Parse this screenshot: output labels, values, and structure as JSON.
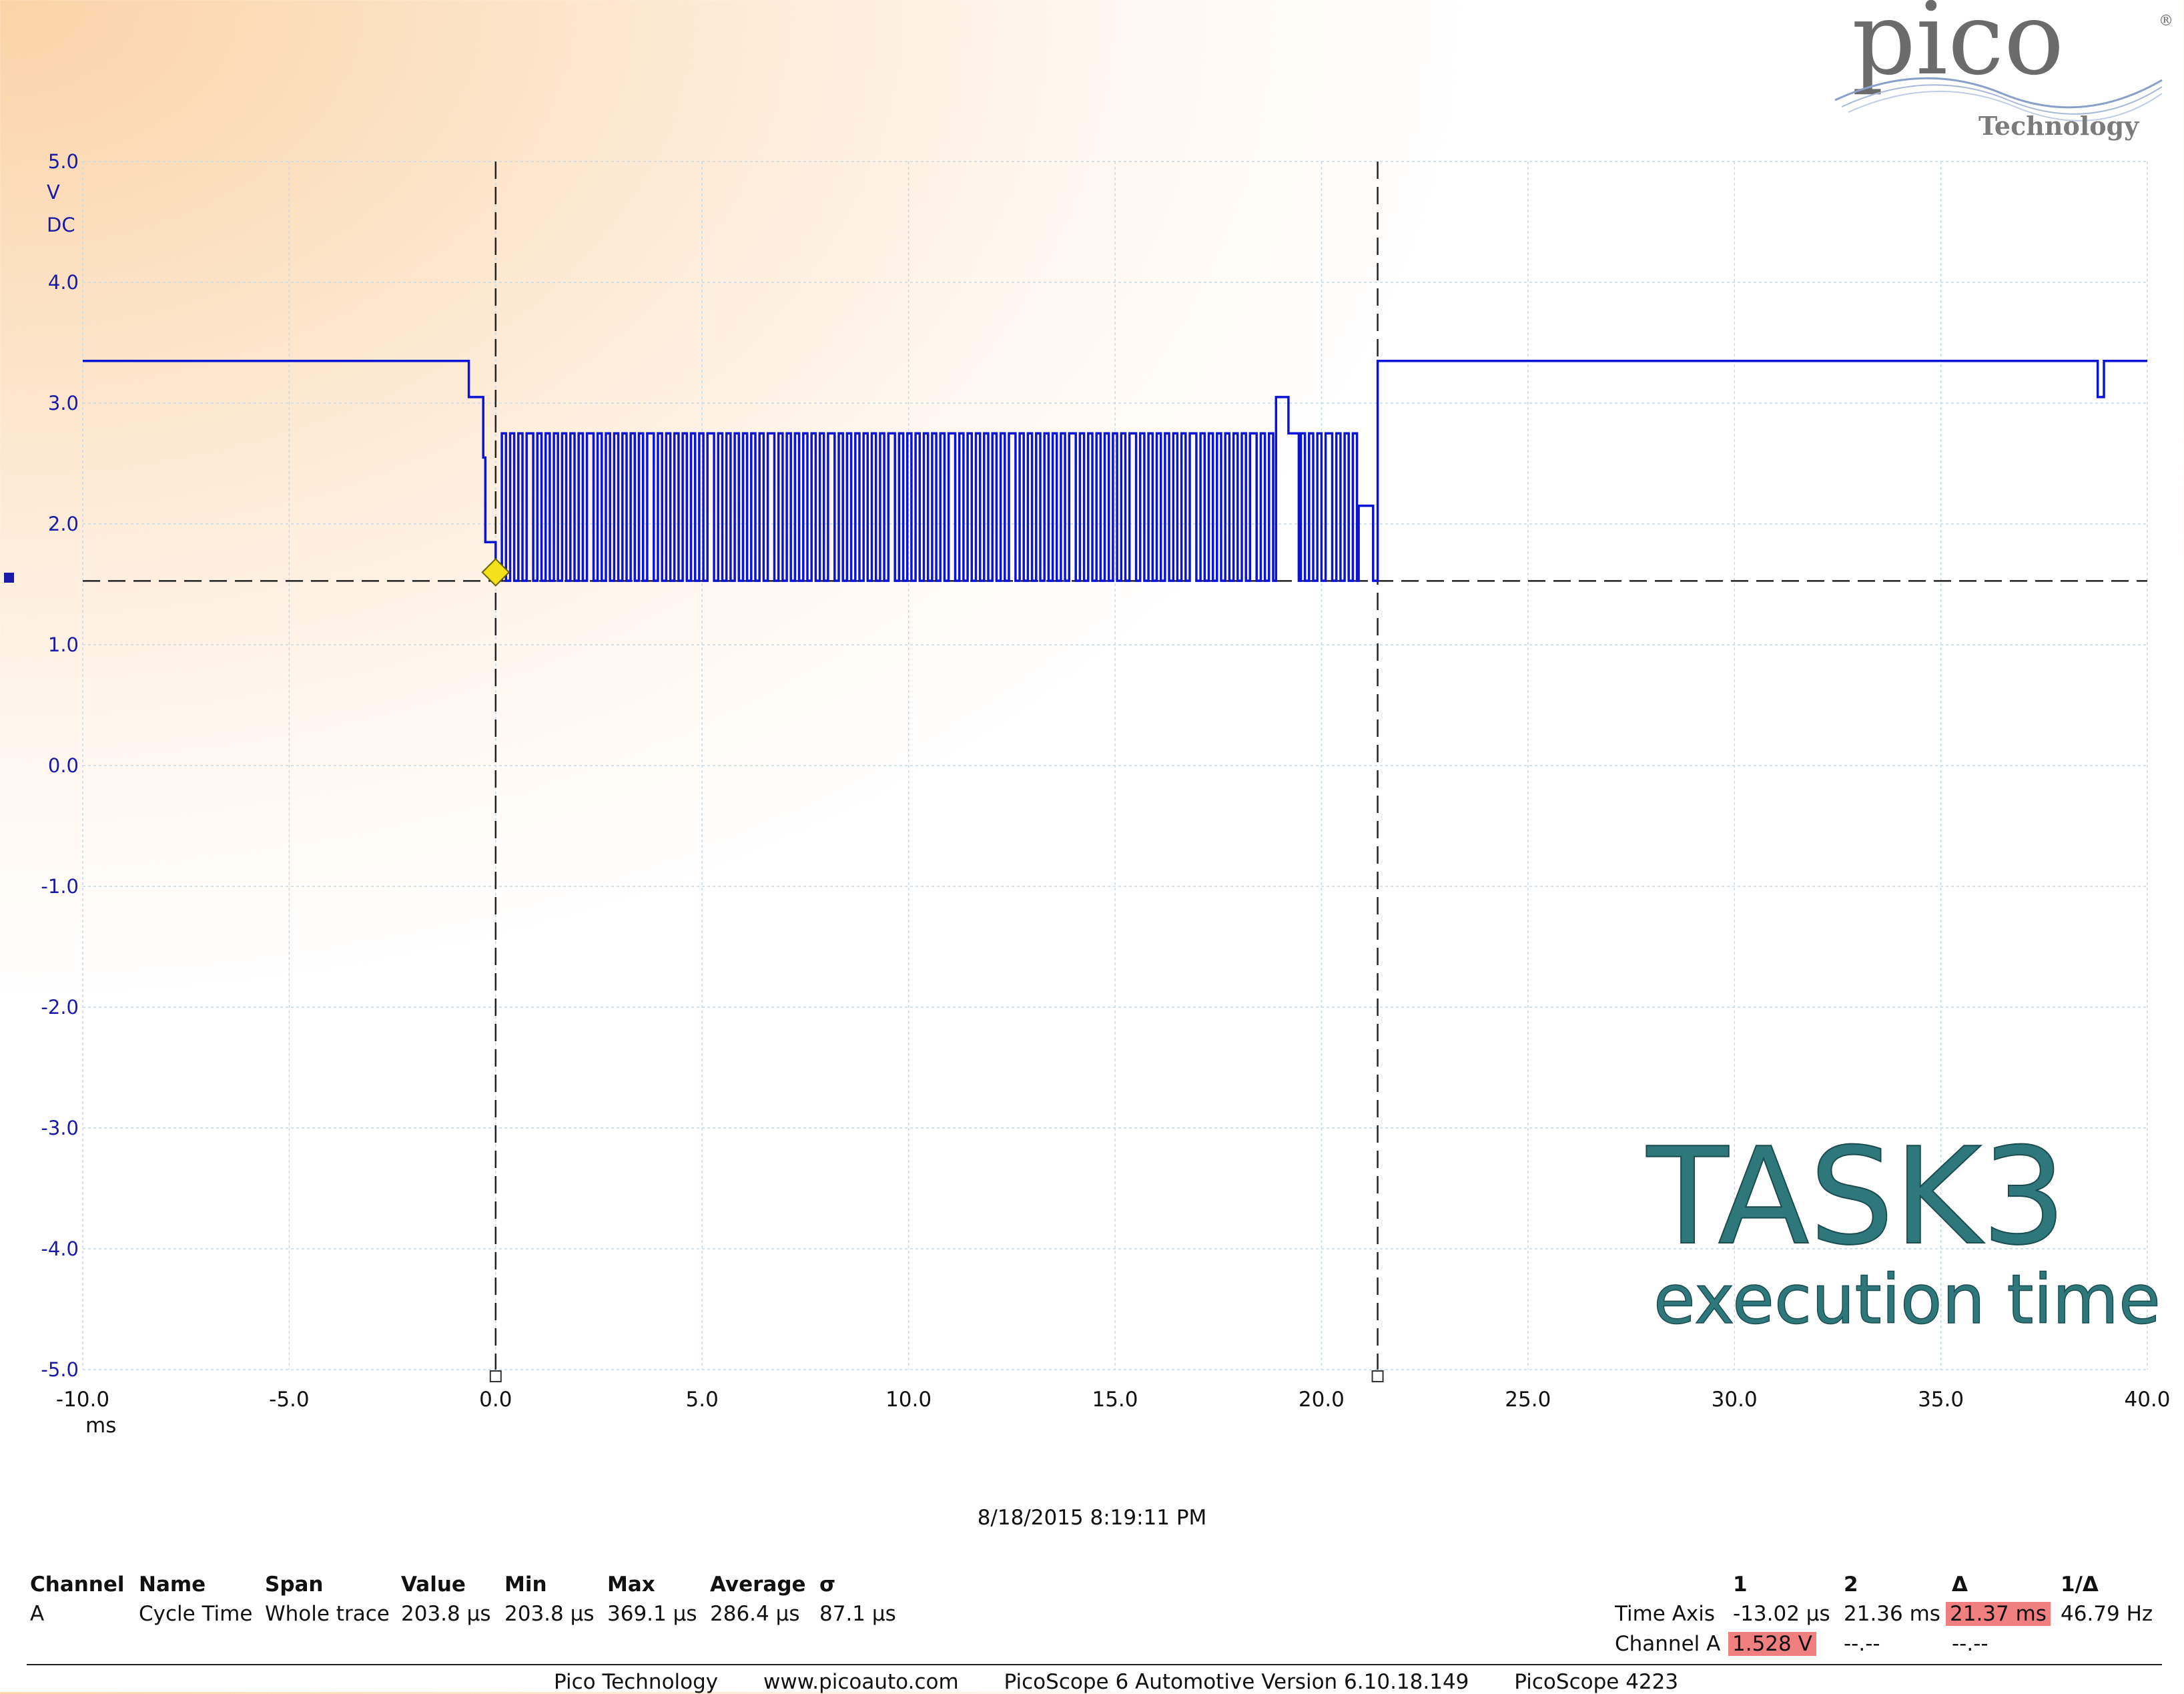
{
  "logo": {
    "brand": "pico",
    "sub": "Technology",
    "registered": "®"
  },
  "chart_data": {
    "type": "line",
    "title": "",
    "xlabel": "",
    "ylabel": "",
    "y_unit": "V",
    "y_coupling": "DC",
    "x_unit": "ms",
    "xlim": [
      -10.0,
      40.0
    ],
    "ylim": [
      -5.0,
      5.0
    ],
    "grid": true,
    "x_ticks": [
      "-10.0",
      "-5.0",
      "0.0",
      "5.0",
      "10.0",
      "15.0",
      "20.0",
      "25.0",
      "30.0",
      "35.0",
      "40.0"
    ],
    "y_ticks": [
      "5.0",
      "4.0",
      "3.0",
      "2.0",
      "1.0",
      "0.0",
      "-1.0",
      "-2.0",
      "-3.0",
      "-4.0",
      "-5.0"
    ],
    "trigger": {
      "time_ms": 0.0,
      "level_v": 1.6
    },
    "cursors": {
      "time_ms": [
        0.0,
        21.36
      ],
      "level_v": 1.528
    },
    "series": [
      {
        "name": "A",
        "color": "#0a14d6",
        "idle_high_v": 3.35,
        "burst_high_v": 2.75,
        "burst_low_v": 1.53,
        "points": [
          [
            -10.0,
            3.35
          ],
          [
            -0.65,
            3.35
          ],
          [
            -0.65,
            3.05
          ],
          [
            -0.3,
            3.05
          ],
          [
            -0.3,
            2.55
          ],
          [
            -0.25,
            2.55
          ],
          [
            -0.25,
            1.85
          ],
          [
            0.0,
            1.85
          ],
          [
            0.0,
            1.55
          ],
          [
            0.15,
            1.55
          ]
        ],
        "burst": {
          "start_ms": 0.15,
          "end_ms": 18.9,
          "period_ms": 0.2
        },
        "points_after_burst": [
          [
            18.9,
            1.53
          ],
          [
            18.9,
            3.05
          ],
          [
            19.2,
            3.05
          ],
          [
            19.2,
            2.75
          ],
          [
            19.45,
            2.75
          ],
          [
            19.45,
            1.53
          ]
        ],
        "burst2": {
          "start_ms": 19.5,
          "end_ms": 20.9,
          "period_ms": 0.2
        },
        "points_tail": [
          [
            20.9,
            1.53
          ],
          [
            20.9,
            2.15
          ],
          [
            21.25,
            2.15
          ],
          [
            21.25,
            1.53
          ],
          [
            21.36,
            1.53
          ],
          [
            21.36,
            3.35
          ],
          [
            38.8,
            3.35
          ],
          [
            38.8,
            3.05
          ],
          [
            38.95,
            3.05
          ],
          [
            38.95,
            3.35
          ],
          [
            40.0,
            3.35
          ]
        ]
      }
    ]
  },
  "watermark": {
    "title": "TASK3",
    "subtitle": "execution time"
  },
  "timestamp": "8/18/2015 8:19:11 PM",
  "measurements": {
    "headers": [
      "Channel",
      "Name",
      "Span",
      "Value",
      "Min",
      "Max",
      "Average",
      "σ"
    ],
    "rows": [
      [
        "A",
        "Cycle Time",
        "Whole trace",
        "203.8 µs",
        "203.8 µs",
        "369.1 µs",
        "286.4 µs",
        "87.1 µs"
      ]
    ]
  },
  "rulers": {
    "headers": [
      "1",
      "2",
      "Δ",
      "1/Δ"
    ],
    "rows": [
      {
        "label": "Time Axis",
        "v1": "-13.02 µs",
        "v2": "21.36 ms",
        "delta": "21.37 ms",
        "inv": "46.79 Hz"
      },
      {
        "label": "Channel A",
        "v1": "1.528 V",
        "v2": "--.--",
        "delta": "--.--",
        "inv": ""
      }
    ]
  },
  "footer": {
    "company": "Pico Technology",
    "url": "www.picoauto.com",
    "version": "PicoScope 6 Automotive Version 6.10.18.149",
    "device": "PicoScope 4223"
  }
}
